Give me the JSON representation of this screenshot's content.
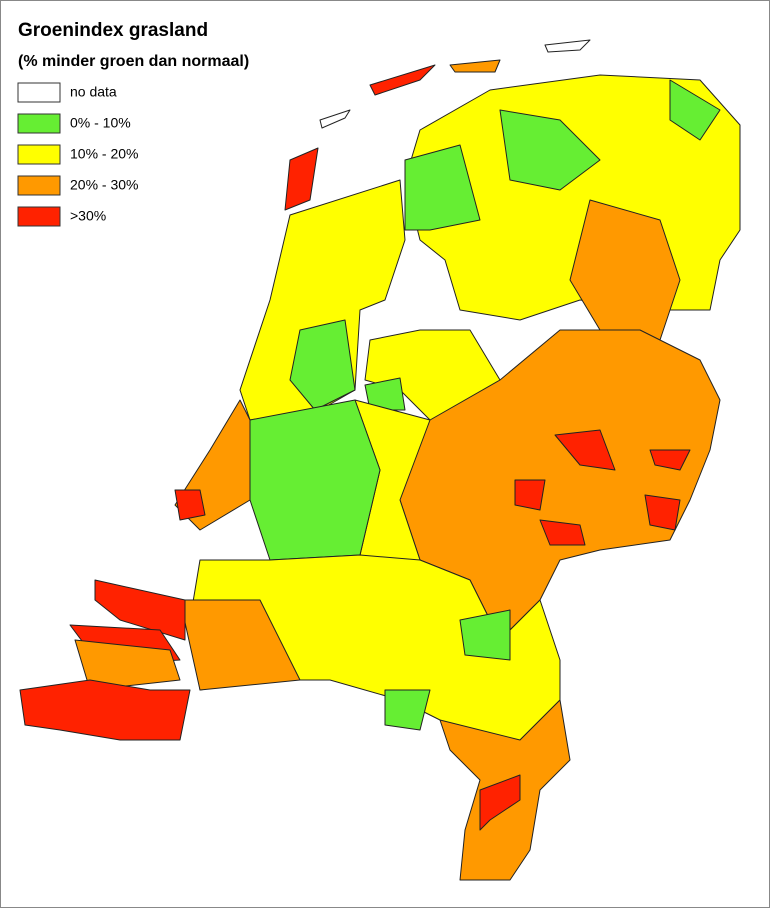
{
  "title": "Groenindex grasland",
  "subtitle": "(% minder groen dan normaal)",
  "legend": [
    {
      "label": "no data",
      "color": "#ffffff"
    },
    {
      "label": "0% - 10%",
      "color": "#66ee33"
    },
    {
      "label": "10% - 20%",
      "color": "#ffff00"
    },
    {
      "label": "20% - 30%",
      "color": "#ff9900"
    },
    {
      "label": ">30%",
      "color": "#ff2200"
    }
  ]
}
